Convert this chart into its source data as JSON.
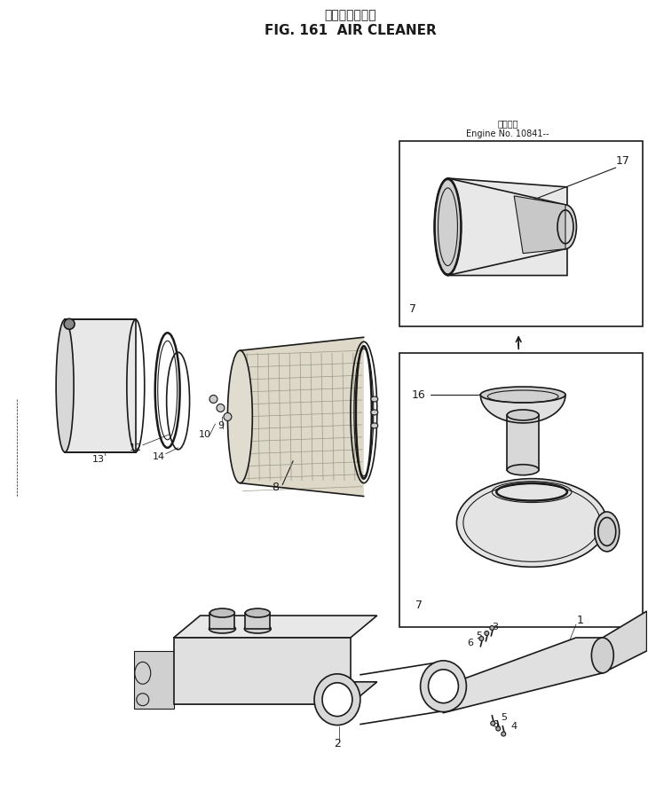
{
  "title_jp": "エアークリーナ",
  "title_en": "FIG. 161  AIR CLEANER",
  "bg": "#ffffff",
  "lc": "#1a1a1a",
  "subtitle_jp": "適用番号",
  "subtitle_en": "Engine No. 10841--",
  "figsize": [
    7.3,
    9.02
  ],
  "dpi": 100
}
